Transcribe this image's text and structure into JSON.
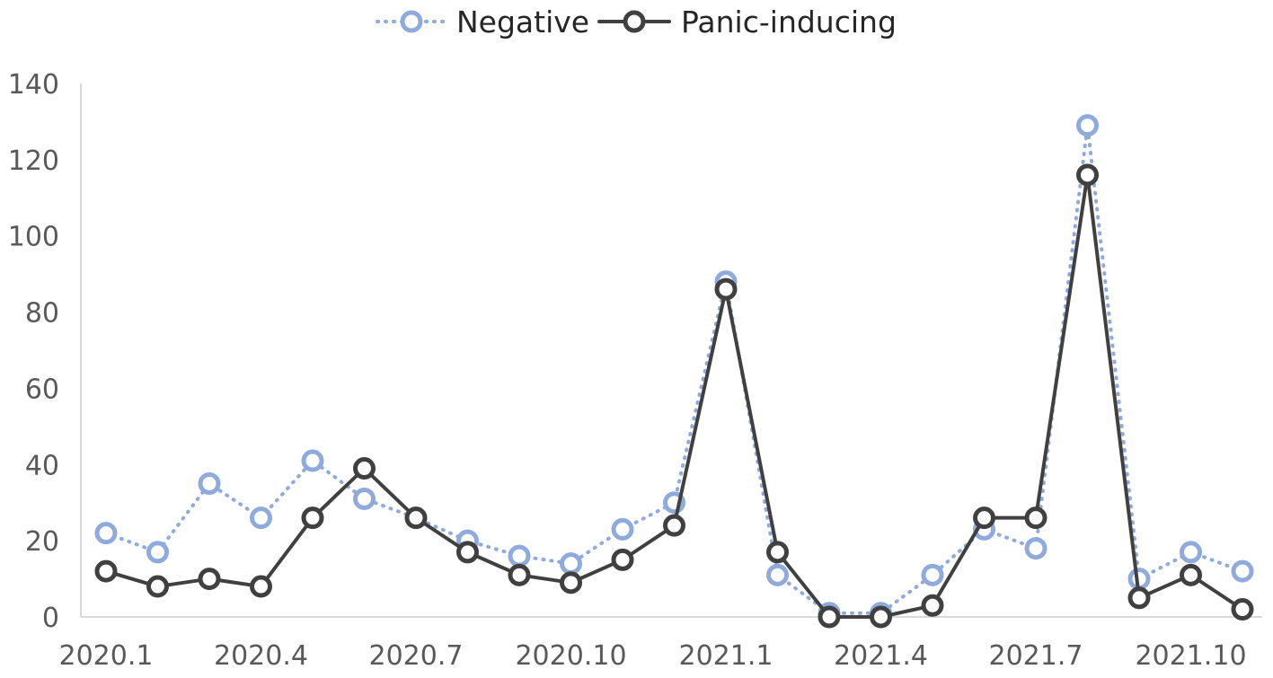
{
  "chart_data": {
    "type": "line",
    "title": "",
    "xlabel": "",
    "ylabel": "",
    "x": [
      "2020.1",
      "2020.2",
      "2020.3",
      "2020.4",
      "2020.5",
      "2020.6",
      "2020.7",
      "2020.8",
      "2020.9",
      "2020.10",
      "2020.11",
      "2020.12",
      "2021.1",
      "2021.2",
      "2021.3",
      "2021.4",
      "2021.5",
      "2021.6",
      "2021.7",
      "2021.8",
      "2021.9",
      "2021.10",
      "2021.11"
    ],
    "x_tick_labels": [
      "2020.1",
      "2020.4",
      "2020.7",
      "2020.10",
      "2021.1",
      "2021.4",
      "2021.7",
      "2021.10"
    ],
    "ylim": [
      0,
      140
    ],
    "y_ticks": [
      0,
      20,
      40,
      60,
      80,
      100,
      120,
      140
    ],
    "grid": false,
    "legend_position": "top-center",
    "series": [
      {
        "name": "Negative",
        "color": "#8faadc",
        "style": "dotted",
        "marker": "open-circle",
        "values": [
          22,
          17,
          35,
          26,
          41,
          31,
          26,
          20,
          16,
          14,
          23,
          30,
          88,
          11,
          1,
          1,
          11,
          23,
          18,
          129,
          10,
          17,
          12
        ]
      },
      {
        "name": "Panic-inducing",
        "color": "#404040",
        "style": "solid",
        "marker": "open-circle",
        "values": [
          12,
          8,
          10,
          8,
          26,
          39,
          26,
          17,
          11,
          9,
          15,
          24,
          86,
          17,
          0,
          0,
          3,
          26,
          26,
          116,
          5,
          11,
          2
        ]
      }
    ]
  }
}
